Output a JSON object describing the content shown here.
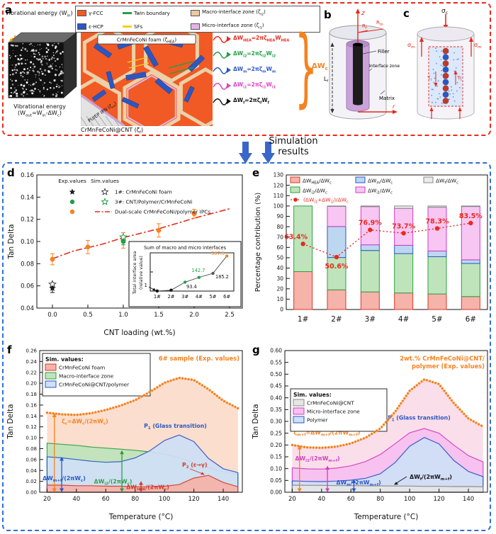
{
  "panel_a": {
    "label": "a",
    "vib_in": "Vibrational energy (W_{in})",
    "vib_out": "Vibrational energy (W_{out}=W_{in}-ΔW_{c})",
    "legend_items": [
      {
        "name": "gamma-fcc",
        "label": "γ-FCC",
        "color": "#f15a24",
        "type": "swatch"
      },
      {
        "name": "twin-boundary",
        "label": "Twin boundary",
        "color": "#1fa046",
        "type": "line"
      },
      {
        "name": "macro-interface-zone",
        "label": "Macro-interface zone (ζ_{i2})",
        "color": "#e8c9a0",
        "type": "swatch"
      },
      {
        "name": "eps-hcp",
        "label": "ε-HCP",
        "color": "#2b57c4",
        "type": "swatch"
      },
      {
        "name": "sfs",
        "label": "SFs",
        "color": "#f7d117",
        "type": "line"
      },
      {
        "name": "micro-interface-zone",
        "label": "Micro-interface zone (ζ_{i1})",
        "color": "#e5b3e8",
        "type": "swatch"
      }
    ],
    "foam_box_label": "CrMnFeCoNi foam (ζ_{HEA})",
    "ipn_label": "PU/EP IPN (ζ_{m})",
    "cnt_label": "CrMnFeCoNi@CNT (ζ_{f})",
    "equations": [
      {
        "text": "ΔW_{HEA}=2πζ_{HEA}W_{HEA}",
        "color": "#e8291c"
      },
      {
        "text": "ΔW_{i2}=2πζ_{i2}W_{i2}",
        "color": "#1fa046"
      },
      {
        "text": "ΔW_{m}=2πζ_{m}W_{m}",
        "color": "#2b57c4"
      },
      {
        "text": "ΔW_{i1}=2πζ_{i1}W_{i1}",
        "color": "#e040c8"
      },
      {
        "text": "ΔW_{f}=2πζ_{f}W_{f}",
        "color": "#111111"
      }
    ],
    "brace_label": "ΔW_{c}"
  },
  "panel_b": {
    "label": "b",
    "z": "z",
    "rf": "R_{f}",
    "rm": "R_{m}",
    "filler": "Filler",
    "interface_zone": "Interface zone",
    "matrix": "Matrix",
    "lf": "L_{f}",
    "r": "r"
  },
  "panel_c": {
    "label": "c",
    "sigma_c": "σ_{c}",
    "sigma_m_left": "σ_{m}",
    "sigma_m_right": "σ_{m}",
    "tau_left": "τ_{i}",
    "tau_right": "τ_{i}"
  },
  "sim_results": "Simulation results",
  "chart_data": [
    {
      "id": "d",
      "panel_label": "d",
      "type": "scatter",
      "xlabel": "CNT loading (wt.%)",
      "ylabel": "Tan Delta",
      "xlim": [
        -0.22,
        2.68
      ],
      "ylim": [
        0.04,
        0.16
      ],
      "xticks": [
        0,
        0.5,
        1.0,
        1.5,
        2.0,
        2.5
      ],
      "xtick_labels": [
        "0.0",
        "0.5",
        "1.0",
        "1.5",
        "2.0",
        "2.5"
      ],
      "yticks": [
        0.04,
        0.06,
        0.08,
        0.1,
        0.12,
        0.14,
        0.16
      ],
      "ytick_labels": [
        "0.04",
        "0.06",
        "0.08",
        "0.10",
        "0.12",
        "0.14",
        "0.16"
      ],
      "legend": {
        "exp_header": "Exp.values",
        "sim_header": "Sim.values",
        "rows": [
          {
            "label": "1#: CrMnFeCoNi foam",
            "color": "#1a1a1a"
          },
          {
            "label": "3#: CNT/Polymer/CrMnFeCoNi",
            "color": "#1fa046"
          },
          {
            "label": "Dual-scale CrMnFeCoNi/polymer IPCs",
            "color": "#f5821f",
            "line_color": "#e8291c"
          }
        ]
      },
      "points": {
        "foam_exp": {
          "x": 0,
          "y": 0.058,
          "err": 0.004
        },
        "foam_sim": {
          "x": 0,
          "y": 0.0615
        },
        "cnt_exp": {
          "x": 1.0,
          "y": 0.1,
          "err": 0.003
        },
        "cnt_sim": {
          "x": 1.0,
          "y": 0.104
        },
        "ipc_exp": {
          "x": [
            0,
            0.5,
            1.0,
            1.5,
            2.0
          ],
          "y": [
            0.084,
            0.095,
            0.101,
            0.11,
            0.125
          ],
          "err": [
            0.005,
            0.006,
            0.007,
            0.006,
            0.004
          ]
        }
      },
      "fit_line": {
        "color": "#e8291c",
        "style": "dashdot",
        "x": [
          0,
          0.3,
          0.7,
          1.0,
          1.5,
          2.0,
          2.5
        ],
        "y": [
          0.0845,
          0.0915,
          0.0975,
          0.1035,
          0.1115,
          0.121,
          0.1295
        ]
      },
      "inset": {
        "title": "Sum of macro and micro interfaces",
        "ylabel_line1": "Total interface area",
        "ylabel_line2": "(relative value)",
        "categories": [
          "1#",
          "2#",
          "3#",
          "4#",
          "5#",
          "6#"
        ],
        "values": [
          1,
          10,
          93.4,
          142.7,
          185.2,
          367.5
        ],
        "point_labels": [
          "1",
          "",
          "93.4",
          "142.7",
          "185.2",
          "367.5"
        ],
        "label_colors": [
          "#111",
          "",
          "#111",
          "#1fa046",
          "#111",
          "#f5821f"
        ],
        "marker_colors": [
          "#111",
          "#111",
          "#1fa046",
          "#1fa046",
          "#555",
          "#f5821f"
        ]
      }
    },
    {
      "id": "e",
      "panel_label": "e",
      "type": "stacked-bar",
      "ylabel": "Percentage contribution (%)",
      "ylim": [
        0,
        130
      ],
      "yticks": [
        0,
        10,
        20,
        30,
        40,
        50,
        60,
        70,
        80,
        90,
        100,
        110,
        120,
        130
      ],
      "categories": [
        "1#",
        "2#",
        "3#",
        "4#",
        "5#",
        "6#"
      ],
      "series": [
        {
          "name": "ΔW_{HEA}/ΔW_{c}",
          "fill": "#f6b3aa",
          "stroke": "#d43a2a",
          "values": [
            36.6,
            19.0,
            17.0,
            16.0,
            15.0,
            12.5
          ]
        },
        {
          "name": "ΔW_{i2}/ΔW_{c}",
          "fill": "#bfe4bb",
          "stroke": "#2f9e44",
          "values": [
            63.4,
            31.2,
            40.0,
            38.0,
            36.0,
            32.0
          ]
        },
        {
          "name": "ΔW_{m}/ΔW_{c}",
          "fill": "#bdd7f1",
          "stroke": "#2b57c4",
          "values": [
            0,
            30.0,
            5.5,
            8.0,
            5.5,
            3.5
          ]
        },
        {
          "name": "ΔW_{i1}/ΔW_{c}",
          "fill": "#f7c6f2",
          "stroke": "#d13ec4",
          "values": [
            0,
            19.4,
            36.9,
            35.7,
            42.3,
            51.5
          ]
        },
        {
          "name": "ΔW_{f}/ΔW_{c}",
          "fill": "#ececec",
          "stroke": "#888888",
          "values": [
            0,
            0.4,
            0.6,
            2.3,
            1.2,
            0.5
          ]
        }
      ],
      "line": {
        "label": "(ΔW_{i1}+ΔW_{i2})/ΔW_{c}",
        "color": "#e8291c",
        "values": [
          63.4,
          50.6,
          76.9,
          73.7,
          78.3,
          83.5
        ],
        "point_labels": [
          "63.4%",
          "50.6%",
          "76.9%",
          "73.7%",
          "78.3%",
          "83.5%"
        ]
      }
    },
    {
      "id": "f",
      "panel_label": "f",
      "type": "area",
      "xlabel": "Temperature (°C)",
      "ylabel": "Tan Delta",
      "xlim": [
        15,
        153
      ],
      "ylim": [
        0,
        0.26
      ],
      "xticks": [
        20,
        40,
        60,
        80,
        100,
        120,
        140
      ],
      "xtick_labels": [
        "20",
        "40",
        "60",
        "80",
        "100",
        "120",
        "140"
      ],
      "yticks": [
        0,
        0.02,
        0.04,
        0.06,
        0.08,
        0.1,
        0.12,
        0.14,
        0.16,
        0.18,
        0.2,
        0.22,
        0.24,
        0.26
      ],
      "ytick_labels": [
        "0.00",
        "0.02",
        "0.04",
        "0.06",
        "0.08",
        "0.10",
        "0.12",
        "0.14",
        "0.16",
        "0.18",
        "0.20",
        "0.22",
        "0.24",
        "0.26"
      ],
      "x": [
        20,
        30,
        40,
        50,
        60,
        70,
        80,
        90,
        100,
        110,
        120,
        130,
        140,
        150
      ],
      "exp": {
        "label_lines": [
          "6# sample (Exp. values)"
        ],
        "color": "#f5821f",
        "fill": "#fcdccb",
        "values": [
          0.146,
          0.143,
          0.142,
          0.145,
          0.151,
          0.159,
          0.169,
          0.184,
          0.201,
          0.21,
          0.206,
          0.189,
          0.168,
          0.154
        ]
      },
      "legend_title": "Sim. values:",
      "series": [
        {
          "name": "CrMnFeCoNi foam",
          "fill": "#f6b3aa",
          "stroke": "#d43a2a",
          "values": [
            0.013,
            0.013,
            0.012,
            0.012,
            0.011,
            0.011,
            0.01,
            0.01,
            0.011,
            0.014,
            0.026,
            0.031,
            0.018,
            0.01
          ]
        },
        {
          "name": "Macro-interface zone",
          "fill": "#bfe4bb",
          "stroke": "#2f9e44",
          "values": [
            0.09,
            0.088,
            0.086,
            0.083,
            0.081,
            0.079,
            0.077,
            0.074,
            0.07,
            0.064,
            0.054,
            0.045,
            0.038,
            0.033
          ]
        },
        {
          "name": "CrMnFeCoNi@CNT/polymer",
          "fill": "#cfe0f7",
          "stroke": "#2b57c4",
          "values": [
            0.065,
            0.063,
            0.06,
            0.057,
            0.055,
            0.056,
            0.063,
            0.076,
            0.095,
            0.105,
            0.093,
            0.062,
            0.043,
            0.036
          ]
        }
      ],
      "annotations": [
        {
          "text": "ζ_{c}=ΔW_{c}/(2πW_{c})",
          "color": "#f5821f",
          "x": 30,
          "y": 0.127
        },
        {
          "text": "P_{1} (Glass transition)",
          "color": "#2b57c4",
          "x": 86,
          "y": 0.118
        },
        {
          "text": "P_{2} (ε→γ)",
          "color": "#d43a2a",
          "x": 112,
          "y": 0.047
        },
        {
          "text": "ΔW_{m+f}/(2πW_{c})",
          "color": "#2b57c4",
          "x": 17,
          "y": 0.022
        },
        {
          "text": "ΔW_{i2}/(2πW_{c})",
          "color": "#2f9e44",
          "x": 52,
          "y": 0.016
        },
        {
          "text": "ΔW_{HEA}/(2πW_{c})",
          "color": "#d43a2a",
          "x": 74,
          "y": 0.006
        }
      ],
      "arrows": [
        {
          "x": 25,
          "y0": 0,
          "y1": 0.145,
          "color": "#f5821f"
        },
        {
          "x": 30,
          "y0": 0,
          "y1": 0.065,
          "color": "#2b57c4"
        },
        {
          "x": 71,
          "y0": 0,
          "y1": 0.077,
          "color": "#2f9e44"
        },
        {
          "x": 84,
          "y0": 0,
          "y1": 0.0205,
          "color": "#d43a2a"
        }
      ]
    },
    {
      "id": "g",
      "panel_label": "g",
      "type": "area",
      "xlabel": "Temperature (°C)",
      "ylabel": "Tan Delta",
      "xlim": [
        15,
        153
      ],
      "ylim": [
        0,
        0.6
      ],
      "xticks": [
        20,
        40,
        60,
        80,
        100,
        120,
        140
      ],
      "xtick_labels": [
        "20",
        "40",
        "60",
        "80",
        "100",
        "120",
        "140"
      ],
      "yticks": [
        0,
        0.05,
        0.1,
        0.15,
        0.2,
        0.25,
        0.3,
        0.35,
        0.4,
        0.45,
        0.5,
        0.55,
        0.6
      ],
      "ytick_labels": [
        "0.00",
        "0.05",
        "0.10",
        "0.15",
        "0.20",
        "0.25",
        "0.30",
        "0.35",
        "0.40",
        "0.45",
        "0.50",
        "0.55",
        "0.60"
      ],
      "x": [
        20,
        30,
        40,
        50,
        60,
        70,
        80,
        90,
        100,
        110,
        120,
        130,
        140,
        150
      ],
      "exp": {
        "label_lines": [
          "2wt.% CrMnFeCoNi@CNT/",
          "polymer (Exp. values)"
        ],
        "color": "#f5821f",
        "fill": "#fadce8",
        "values": [
          0.2,
          0.19,
          0.188,
          0.193,
          0.207,
          0.231,
          0.27,
          0.34,
          0.43,
          0.478,
          0.458,
          0.378,
          0.312,
          0.278
        ]
      },
      "legend_title": "Sim. values:",
      "series": [
        {
          "name": "CrMnFeCoNi@CNT",
          "fill": "#e6e6e6",
          "stroke": "#888888",
          "values": [
            0.03,
            0.029,
            0.029,
            0.028,
            0.028,
            0.027,
            0.027,
            0.026,
            0.026,
            0.025,
            0.025,
            0.024,
            0.024,
            0.023
          ]
        },
        {
          "name": "Micro-interface zone",
          "fill": "#f7c0f0",
          "stroke": "#d13ec4",
          "values": [
            0.103,
            0.099,
            0.098,
            0.102,
            0.112,
            0.13,
            0.16,
            0.205,
            0.252,
            0.27,
            0.25,
            0.2,
            0.155,
            0.128
          ]
        },
        {
          "name": "Polymer",
          "fill": "#cfe0f7",
          "stroke": "#2b57c4",
          "values": [
            0.048,
            0.046,
            0.045,
            0.047,
            0.051,
            0.059,
            0.078,
            0.125,
            0.195,
            0.232,
            0.205,
            0.135,
            0.088,
            0.066
          ]
        }
      ],
      "annotations": [
        {
          "text": "ζ_{m+f}=ΔW_{m+f}/(2πW_{m+f})",
          "color": "#f5821f",
          "x": 21,
          "y": 0.245
        },
        {
          "text": "P_{1} (Glass transition)",
          "color": "#2b57c4",
          "x": 85,
          "y": 0.307
        },
        {
          "text": "ΔW_{i1}/(2πW_{m+f})",
          "color": "#d13ec4",
          "x": 22,
          "y": 0.135
        },
        {
          "text": "ΔW_{m}/(2πW_{m+f})",
          "color": "#2b57c4",
          "x": 50,
          "y": 0.033
        },
        {
          "text": "ΔW_{f}/(2πW_{m+f})",
          "color": "#111111",
          "x": 100,
          "y": 0.057
        }
      ],
      "arrows": [
        {
          "x": 25,
          "y0": 0,
          "y1": 0.198,
          "color": "#f5821f"
        },
        {
          "x": 44,
          "y0": 0,
          "y1": 0.112,
          "color": "#d13ec4"
        },
        {
          "x": 62,
          "y0": 0,
          "y1": 0.055,
          "color": "#2b57c4"
        }
      ]
    }
  ]
}
